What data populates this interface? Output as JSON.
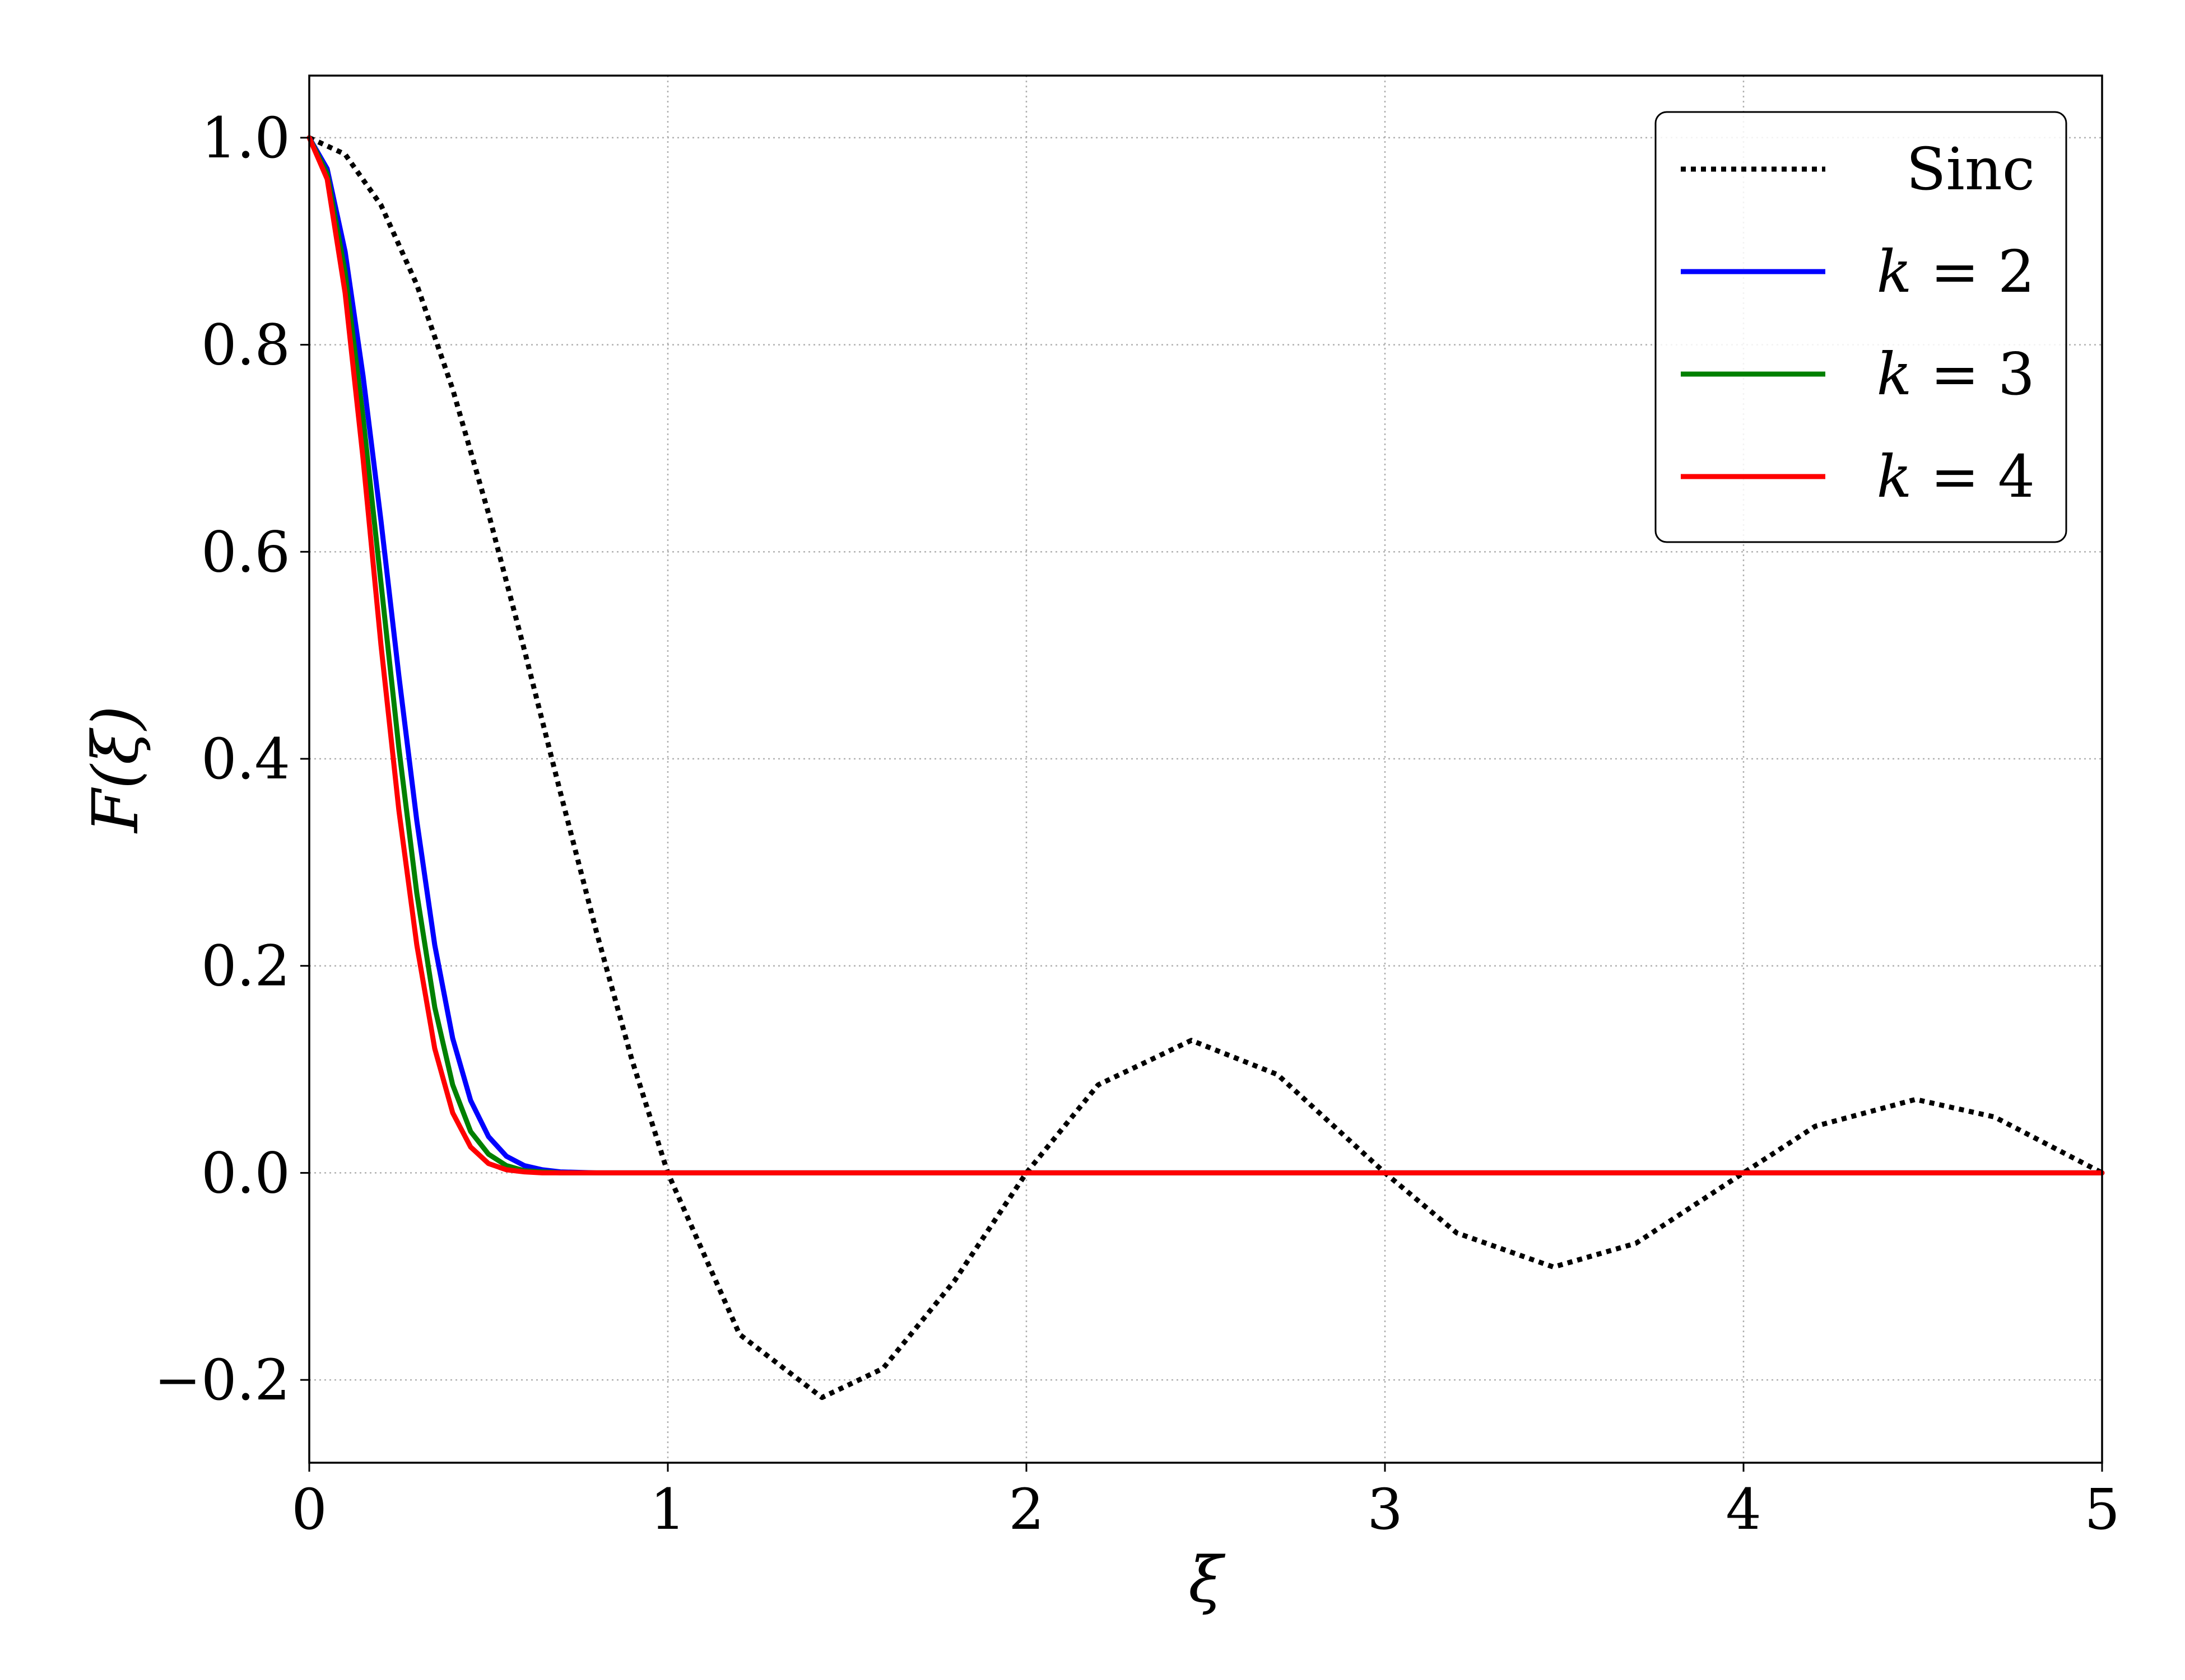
{
  "chart_data": {
    "type": "line",
    "title": "",
    "xlabel": "ξ",
    "ylabel": "F(ξ)",
    "xlim": [
      0,
      5
    ],
    "ylim": [
      -0.28,
      1.06
    ],
    "xticks": [
      0,
      1,
      2,
      3,
      4,
      5
    ],
    "xtick_labels": [
      "0",
      "1",
      "2",
      "3",
      "4",
      "5"
    ],
    "yticks": [
      -0.2,
      0.0,
      0.2,
      0.4,
      0.6,
      0.8,
      1.0
    ],
    "ytick_labels": [
      "−0.2",
      "0.0",
      "0.2",
      "0.4",
      "0.6",
      "0.8",
      "1.0"
    ],
    "grid": true,
    "legend_position": "top-right",
    "series": [
      {
        "name": "Sinc",
        "style": "dotted",
        "color": "#000000",
        "x": [
          0,
          0.1,
          0.2,
          0.3,
          0.4,
          0.5,
          0.6,
          0.7,
          0.8,
          0.9,
          1.0,
          1.2,
          1.43,
          1.6,
          1.8,
          2.0,
          2.2,
          2.46,
          2.7,
          3.0,
          3.2,
          3.47,
          3.7,
          4.0,
          4.2,
          4.48,
          4.7,
          5.0
        ],
        "y": [
          1.0,
          0.984,
          0.935,
          0.858,
          0.757,
          0.637,
          0.505,
          0.368,
          0.234,
          0.109,
          0.0,
          -0.156,
          -0.217,
          -0.189,
          -0.104,
          0.0,
          0.085,
          0.128,
          0.095,
          0.0,
          -0.058,
          -0.091,
          -0.068,
          0.0,
          0.045,
          0.071,
          0.054,
          0.0
        ]
      },
      {
        "name": "k = 2",
        "label_var": "k",
        "label_value": "2",
        "style": "solid",
        "color": "#0000ff",
        "x": [
          0,
          0.05,
          0.1,
          0.15,
          0.2,
          0.25,
          0.3,
          0.35,
          0.4,
          0.45,
          0.5,
          0.55,
          0.6,
          0.65,
          0.7,
          0.8,
          0.9,
          1.0,
          5.0
        ],
        "y": [
          1.0,
          0.97,
          0.89,
          0.77,
          0.63,
          0.48,
          0.34,
          0.22,
          0.13,
          0.07,
          0.035,
          0.016,
          0.007,
          0.003,
          0.001,
          0.0,
          0.0,
          0.0,
          0.0
        ]
      },
      {
        "name": "k = 3",
        "label_var": "k",
        "label_value": "3",
        "style": "solid",
        "color": "#008000",
        "x": [
          0,
          0.05,
          0.1,
          0.15,
          0.2,
          0.25,
          0.3,
          0.35,
          0.4,
          0.45,
          0.5,
          0.55,
          0.6,
          0.65,
          0.7,
          0.8,
          1.0,
          5.0
        ],
        "y": [
          1.0,
          0.965,
          0.87,
          0.73,
          0.57,
          0.41,
          0.27,
          0.16,
          0.085,
          0.04,
          0.018,
          0.007,
          0.002,
          0.001,
          0.0,
          0.0,
          0.0,
          0.0
        ]
      },
      {
        "name": "k = 4",
        "label_var": "k",
        "label_value": "4",
        "style": "solid",
        "color": "#ff0000",
        "x": [
          0,
          0.05,
          0.1,
          0.15,
          0.2,
          0.25,
          0.3,
          0.35,
          0.4,
          0.45,
          0.5,
          0.55,
          0.6,
          0.65,
          0.7,
          0.8,
          1.0,
          5.0
        ],
        "y": [
          1.0,
          0.96,
          0.85,
          0.69,
          0.51,
          0.35,
          0.22,
          0.12,
          0.058,
          0.025,
          0.009,
          0.003,
          0.001,
          0.0,
          0.0,
          0.0,
          0.0,
          0.0
        ]
      }
    ]
  }
}
